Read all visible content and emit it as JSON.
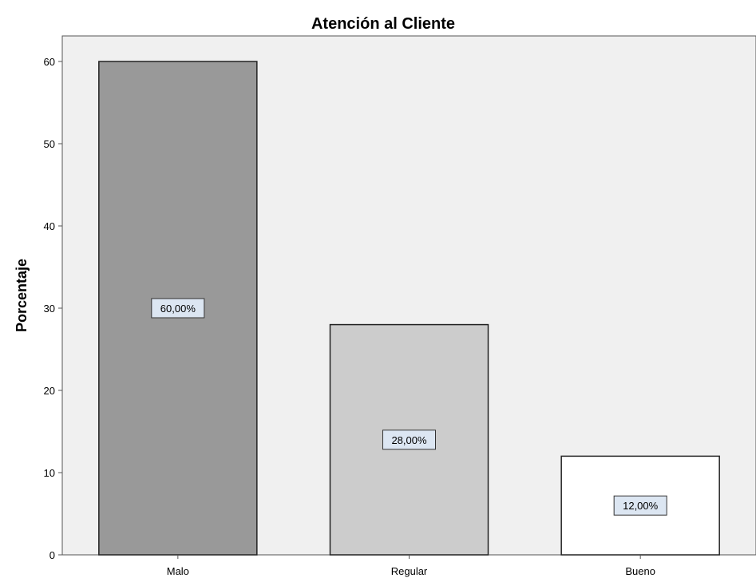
{
  "chart_data": {
    "type": "bar",
    "title": "Atención al Cliente",
    "xlabel": "",
    "ylabel": "Porcentaje",
    "categories": [
      "Malo",
      "Regular",
      "Bueno"
    ],
    "values": [
      60,
      28,
      12
    ],
    "data_labels": [
      "60,00%",
      "28,00%",
      "12,00%"
    ],
    "bar_colors": [
      "#999999",
      "#cccccc",
      "#ffffff"
    ],
    "ylim": [
      0,
      63
    ],
    "yticks": [
      0,
      10,
      20,
      30,
      40,
      50,
      60
    ],
    "grid": false,
    "plot_background": "#f0f0f0",
    "label_box_color": "#dce6f2"
  }
}
